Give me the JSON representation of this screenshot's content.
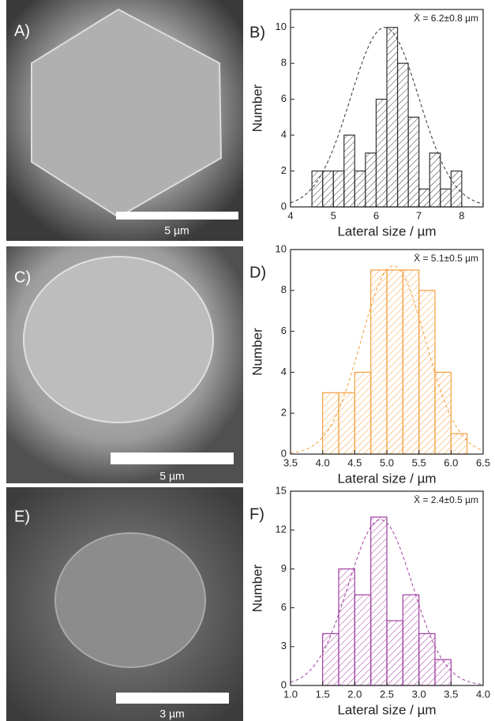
{
  "images": [
    {
      "label": "A)",
      "scale_bar": "5 µm"
    },
    {
      "label": "C)",
      "scale_bar": "5 µm"
    },
    {
      "label": "E)",
      "scale_bar": "3 µm"
    }
  ],
  "chart_data": [
    {
      "type": "histogram",
      "panel_label": "B)",
      "annotation": "X̄ = 6.2±0.8 µm",
      "xlabel": "Lateral size / µm",
      "ylabel": "Number",
      "color": "#333333",
      "bins": [
        4.5,
        4.75,
        5,
        5.25,
        5.5,
        5.75,
        6,
        6.25,
        6.5,
        6.75,
        7,
        7.25,
        7.5,
        7.75,
        8
      ],
      "values": [
        2,
        2,
        2,
        4,
        2,
        3,
        6,
        10,
        8,
        5,
        1,
        3,
        1,
        2
      ],
      "fit": {
        "mean": 6.2,
        "sd": 0.8,
        "peak": 10
      },
      "xlim": [
        4,
        8.5
      ],
      "xticks": [
        4,
        5,
        6,
        7,
        8
      ],
      "ylim": [
        0,
        11
      ],
      "yticks": [
        0,
        2,
        4,
        6,
        8,
        10
      ]
    },
    {
      "type": "histogram",
      "panel_label": "D)",
      "annotation": "X̄ = 5.1±0.5 µm",
      "xlabel": "Lateral size / µm",
      "ylabel": "Number",
      "color": "#f5a040",
      "bins": [
        4,
        4.25,
        4.5,
        4.75,
        5,
        5.25,
        5.5,
        5.75,
        6,
        6.25
      ],
      "values": [
        3,
        3,
        4,
        9,
        9,
        9,
        8,
        4,
        1
      ],
      "fit": {
        "mean": 5.1,
        "sd": 0.5,
        "peak": 9.2
      },
      "xlim": [
        3.5,
        6.5
      ],
      "xticks": [
        3.5,
        {
          "value": 4,
          "label": "4.0"
        },
        4.5,
        {
          "value": 5,
          "label": "5.0"
        },
        5.5,
        {
          "value": 6,
          "label": "6.0"
        },
        6.5
      ],
      "ylim": [
        0,
        10
      ],
      "yticks": [
        0,
        2,
        4,
        6,
        8,
        10
      ]
    },
    {
      "type": "histogram",
      "panel_label": "F)",
      "annotation": "X̄ = 2.4±0.5 µm",
      "xlabel": "Lateral size / µm",
      "ylabel": "Number",
      "color": "#a040a0",
      "bins": [
        1.5,
        1.75,
        2,
        2.25,
        2.5,
        2.75,
        3,
        3.25,
        3.5
      ],
      "values": [
        4,
        9,
        7,
        13,
        5,
        7,
        4,
        2
      ],
      "fit": {
        "mean": 2.4,
        "sd": 0.5,
        "peak": 12.8
      },
      "xlim": [
        1,
        4
      ],
      "xticks": [
        {
          "value": 1,
          "label": "1.0"
        },
        1.5,
        {
          "value": 2,
          "label": "2.0"
        },
        2.5,
        {
          "value": 3,
          "label": "3.0"
        },
        3.5,
        {
          "value": 4,
          "label": "4.0"
        }
      ],
      "ylim": [
        0,
        15
      ],
      "yticks": [
        0,
        3,
        6,
        9,
        12,
        15
      ]
    }
  ]
}
